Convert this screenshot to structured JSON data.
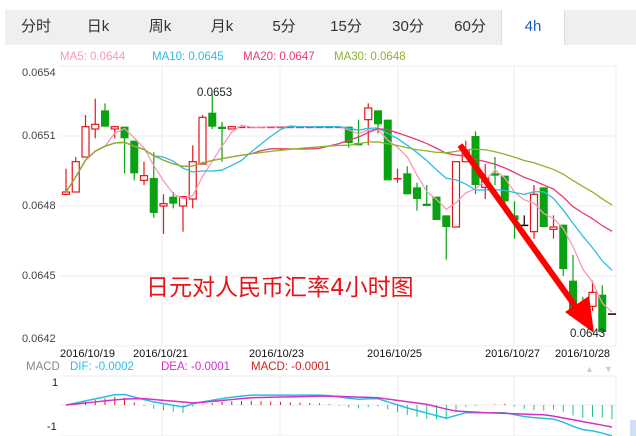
{
  "tabs": [
    {
      "label": "分时"
    },
    {
      "label": "日k"
    },
    {
      "label": "周k"
    },
    {
      "label": "月k"
    },
    {
      "label": "5分"
    },
    {
      "label": "15分"
    },
    {
      "label": "30分"
    },
    {
      "label": "60分"
    },
    {
      "label": "4h",
      "active": true
    }
  ],
  "ma_legend": {
    "ma5": "MA5: 0.0644",
    "ma10": "MA10: 0.0645",
    "ma20": "MA20: 0.0647",
    "ma30": "MA30: 0.0648"
  },
  "colors": {
    "ma5": "#f59ab4",
    "ma10": "#2bbde0",
    "ma20": "#e83a6e",
    "ma30": "#8db32a",
    "up": "#e8141a",
    "down": "#09a312",
    "dif": "#2bbde0",
    "dea": "#d62fc8"
  },
  "y_ticks": [
    "0.0654",
    "0.0651",
    "0.0648",
    "0.0645",
    "0.0642"
  ],
  "dates": [
    "2016/10/19",
    "2016/10/21",
    "2016/10/23",
    "2016/10/25",
    "2016/10/27",
    "2016/10/28"
  ],
  "annotations": {
    "high": "0.0653",
    "low": "0.0643",
    "title": "日元对人民币汇率4小时图"
  },
  "macd_legend": {
    "label": "MACD",
    "dif": "DIF: -0.0002",
    "dea": "DEA: -0.0001",
    "macd": "MACD: -0.0001",
    "y_top": "1",
    "y_bottom": "-1"
  },
  "chart_data": {
    "type": "candlestick",
    "y_range": [
      0.0642,
      0.0654
    ],
    "ohlc": [
      [
        0.06485,
        0.06496,
        0.06485,
        0.06486
      ],
      [
        0.06486,
        0.06501,
        0.06486,
        0.06499
      ],
      [
        0.06501,
        0.06519,
        0.06501,
        0.06514
      ],
      [
        0.06513,
        0.06526,
        0.06509,
        0.06515
      ],
      [
        0.06521,
        0.06524,
        0.06514,
        0.06514
      ],
      [
        0.06513,
        0.06514,
        0.06509,
        0.06514
      ],
      [
        0.06514,
        0.06514,
        0.06494,
        0.06509
      ],
      [
        0.06508,
        0.06508,
        0.06491,
        0.06494
      ],
      [
        0.06491,
        0.06499,
        0.06489,
        0.06493
      ],
      [
        0.06492,
        0.06503,
        0.06475,
        0.06477
      ],
      [
        0.0648,
        0.06485,
        0.06468,
        0.06481
      ],
      [
        0.06484,
        0.06486,
        0.06479,
        0.06481
      ],
      [
        0.0648,
        0.06484,
        0.06469,
        0.06484
      ],
      [
        0.06483,
        0.06506,
        0.06479,
        0.06499
      ],
      [
        0.06498,
        0.06519,
        0.06498,
        0.06518
      ],
      [
        0.0652,
        0.06528,
        0.06513,
        0.06514
      ],
      [
        0.06514,
        0.06516,
        0.06499,
        0.06513
      ],
      [
        0.06513,
        0.06514,
        0.06513,
        0.06514
      ],
      [
        0.06514,
        0.06514,
        0.06514,
        0.06514
      ],
      [
        0.06514,
        0.06514,
        0.06514,
        0.06514
      ],
      [
        0.06514,
        0.06514,
        0.06514,
        0.06514
      ],
      [
        0.06514,
        0.06514,
        0.06514,
        0.06514
      ],
      [
        0.06514,
        0.06514,
        0.06514,
        0.06514
      ],
      [
        0.06514,
        0.06514,
        0.06514,
        0.06514
      ],
      [
        0.06514,
        0.06514,
        0.06514,
        0.06514
      ],
      [
        0.06514,
        0.06514,
        0.06514,
        0.06514
      ],
      [
        0.06514,
        0.06514,
        0.06514,
        0.06514
      ],
      [
        0.06514,
        0.06514,
        0.06514,
        0.06514
      ],
      [
        0.06514,
        0.06514,
        0.06514,
        0.06514
      ],
      [
        0.06514,
        0.06514,
        0.06505,
        0.06507
      ],
      [
        0.06507,
        0.06517,
        0.06506,
        0.06506
      ],
      [
        0.06517,
        0.06524,
        0.06506,
        0.06522
      ],
      [
        0.06521,
        0.06521,
        0.06511,
        0.06515
      ],
      [
        0.06517,
        0.06517,
        0.06491,
        0.06491
      ],
      [
        0.06492,
        0.06496,
        0.0649,
        0.06492
      ],
      [
        0.06494,
        0.06497,
        0.06485,
        0.06485
      ],
      [
        0.06488,
        0.0649,
        0.06478,
        0.06483
      ],
      [
        0.06481,
        0.06489,
        0.0648,
        0.0648
      ],
      [
        0.06484,
        0.06484,
        0.06474,
        0.06474
      ],
      [
        0.06476,
        0.06476,
        0.06457,
        0.06471
      ],
      [
        0.06471,
        0.06499,
        0.06471,
        0.06499
      ],
      [
        0.06499,
        0.06508,
        0.06499,
        0.06504
      ],
      [
        0.0651,
        0.06512,
        0.06485,
        0.06489
      ],
      [
        0.06488,
        0.06498,
        0.06483,
        0.06492
      ],
      [
        0.06494,
        0.06501,
        0.06489,
        0.06493
      ],
      [
        0.06493,
        0.06493,
        0.0648,
        0.06482
      ],
      [
        0.06476,
        0.06482,
        0.06466,
        0.06474
      ],
      [
        0.06472,
        0.06476,
        0.06472,
        0.06472
      ],
      [
        0.06469,
        0.06489,
        0.06466,
        0.06485
      ],
      [
        0.06488,
        0.06488,
        0.06471,
        0.06471
      ],
      [
        0.0647,
        0.06476,
        0.06466,
        0.06471
      ],
      [
        0.06472,
        0.06472,
        0.0645,
        0.06453
      ],
      [
        0.06448,
        0.06459,
        0.06433,
        0.06433
      ],
      [
        0.06438,
        0.06441,
        0.06432,
        0.06437
      ],
      [
        0.06437,
        0.06448,
        0.06435,
        0.06443
      ],
      [
        0.06442,
        0.06446,
        0.06426,
        0.06426
      ],
      [
        0.06434,
        0.06434,
        0.06434,
        0.06434
      ]
    ],
    "ma_periods": [
      5,
      10,
      20,
      30
    ],
    "macd_range": [
      -1.4,
      1
    ],
    "dif": [
      [
        0,
        0
      ],
      [
        5.6,
        0.52
      ],
      [
        9,
        0.14
      ],
      [
        12,
        -0.09
      ],
      [
        13.2,
        0.08
      ],
      [
        16.5,
        0.33
      ],
      [
        19,
        0.45
      ],
      [
        26.6,
        0.45
      ],
      [
        29.8,
        0.26
      ],
      [
        31.9,
        0.3
      ],
      [
        34.9,
        -0.12
      ],
      [
        39,
        -0.6
      ],
      [
        41,
        -0.35
      ],
      [
        45,
        -0.35
      ],
      [
        47.3,
        -0.55
      ],
      [
        50.3,
        -0.65
      ],
      [
        52.7,
        -1.1
      ],
      [
        54.4,
        -1.2
      ],
      [
        56,
        -1.4
      ]
    ],
    "dea": [
      [
        0,
        0
      ],
      [
        5.6,
        0.26
      ],
      [
        7.7,
        0.3
      ],
      [
        13.2,
        0.09
      ],
      [
        19,
        0.33
      ],
      [
        26.6,
        0.41
      ],
      [
        32,
        0.33
      ],
      [
        37,
        0.03
      ],
      [
        39.8,
        -0.27
      ],
      [
        43,
        -0.35
      ],
      [
        49.3,
        -0.45
      ],
      [
        56,
        -1.0
      ]
    ]
  }
}
